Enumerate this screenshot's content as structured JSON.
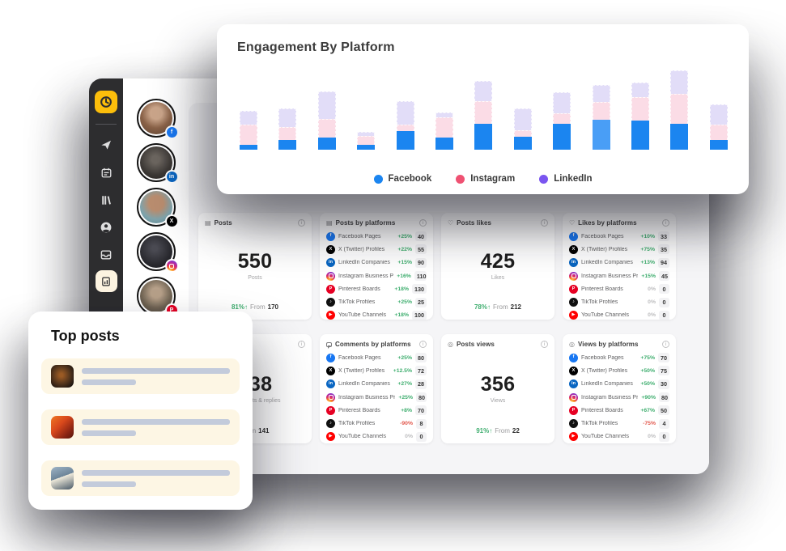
{
  "engagement_card": {
    "title": "Engagement By Platform",
    "legend": [
      {
        "label": "Facebook",
        "color": "#1b85f0"
      },
      {
        "label": "Instagram",
        "color": "#ef5172"
      },
      {
        "label": "LinkedIn",
        "color": "#7a55f0"
      }
    ]
  },
  "chart_data": {
    "type": "bar",
    "stacked": true,
    "title": "Engagement By Platform",
    "x": [
      1,
      2,
      3,
      4,
      5,
      6,
      7,
      8,
      9,
      10,
      11,
      12,
      13
    ],
    "series": [
      {
        "name": "Facebook",
        "color": "#1b85f0",
        "values": [
          6,
          12,
          15,
          6,
          23,
          15,
          32,
          16,
          32,
          37,
          36,
          32,
          12
        ]
      },
      {
        "name": "Instagram",
        "color": "#fbdce6",
        "values": [
          25,
          16,
          23,
          11,
          8,
          25,
          28,
          8,
          13,
          22,
          29,
          37,
          19
        ]
      },
      {
        "name": "LinkedIn",
        "color": "#e2ddf8",
        "values": [
          17,
          23,
          34,
          5,
          29,
          6,
          25,
          27,
          26,
          21,
          18,
          29,
          25
        ]
      }
    ],
    "highlight_index": 9,
    "highlight_color": "#499ef6",
    "xlabel": "",
    "ylabel": "",
    "axes": "hidden",
    "legend_position": "bottom",
    "unit": "relative engagement units (estimated from pixels)"
  },
  "accounts": [
    {
      "network": "Facebook",
      "badge_color": "#1877f2",
      "badge_glyph": "f"
    },
    {
      "network": "LinkedIn",
      "badge_color": "#0a66c2",
      "badge_glyph": "in"
    },
    {
      "network": "X (Twitter)",
      "badge_color": "#000000",
      "badge_glyph": "X"
    },
    {
      "network": "Instagram",
      "badge_color": "ig",
      "badge_glyph": ""
    },
    {
      "network": "Pinterest",
      "badge_color": "#e60023",
      "badge_glyph": "P"
    }
  ],
  "stats": {
    "posts": {
      "icon": "▤",
      "title": "Posts",
      "value": "550",
      "unit": "Posts",
      "percent": "81%",
      "arrow": "↑",
      "from_label": "From",
      "from_value": "170"
    },
    "likes": {
      "icon": "♡",
      "title": "Posts likes",
      "value": "425",
      "unit": "Likes",
      "percent": "78%",
      "arrow": "↑",
      "from_label": "From",
      "from_value": "212"
    },
    "comments": {
      "icon": "",
      "title": "",
      "value": "138",
      "unit": "Comments & replies",
      "percent": "",
      "arrow": "",
      "from_label": "From",
      "from_value": "141"
    },
    "views": {
      "icon": "◎",
      "title": "Posts views",
      "value": "356",
      "unit": "Views",
      "percent": "91%",
      "arrow": "↑",
      "from_label": "From",
      "from_value": "22"
    }
  },
  "platform_lists": {
    "posts": {
      "icon": "▤",
      "title": "Posts by platforms",
      "rows": [
        {
          "name": "Facebook Pages",
          "color": "#1877f2",
          "glyph": "f",
          "percent": "+25%",
          "trend": "up",
          "value": "40"
        },
        {
          "name": "X (Twitter) Profiles",
          "color": "#000000",
          "glyph": "X",
          "percent": "+22%",
          "trend": "up",
          "value": "55"
        },
        {
          "name": "LinkedIn Companies",
          "color": "#0a66c2",
          "glyph": "in",
          "percent": "+15%",
          "trend": "up",
          "value": "90"
        },
        {
          "name": "Instagram Business Profiles",
          "color": "ig",
          "glyph": "",
          "percent": "+16%",
          "trend": "up",
          "value": "110"
        },
        {
          "name": "Pinterest Boards",
          "color": "#e60023",
          "glyph": "P",
          "percent": "+18%",
          "trend": "up",
          "value": "130"
        },
        {
          "name": "TikTok Profiles",
          "color": "#111111",
          "glyph": "♪",
          "percent": "+25%",
          "trend": "up",
          "value": "25"
        },
        {
          "name": "YouTube Channels",
          "color": "#ff0000",
          "glyph": "▶",
          "percent": "+18%",
          "trend": "up",
          "value": "100"
        }
      ]
    },
    "likes": {
      "icon": "♡",
      "title": "Likes by platforms",
      "rows": [
        {
          "name": "Facebook Pages",
          "color": "#1877f2",
          "glyph": "f",
          "percent": "+10%",
          "trend": "up",
          "value": "33"
        },
        {
          "name": "X (Twitter) Profiles",
          "color": "#000000",
          "glyph": "X",
          "percent": "+75%",
          "trend": "up",
          "value": "35"
        },
        {
          "name": "LinkedIn Companies",
          "color": "#0a66c2",
          "glyph": "in",
          "percent": "+13%",
          "trend": "up",
          "value": "94"
        },
        {
          "name": "Instagram Business Profiles",
          "color": "ig",
          "glyph": "",
          "percent": "+15%",
          "trend": "up",
          "value": "45"
        },
        {
          "name": "Pinterest Boards",
          "color": "#e60023",
          "glyph": "P",
          "percent": "0%",
          "trend": "flat",
          "value": "0"
        },
        {
          "name": "TikTok Profiles",
          "color": "#111111",
          "glyph": "♪",
          "percent": "0%",
          "trend": "flat",
          "value": "0"
        },
        {
          "name": "YouTube Channels",
          "color": "#ff0000",
          "glyph": "▶",
          "percent": "0%",
          "trend": "flat",
          "value": "0"
        }
      ]
    },
    "comments": {
      "icon": "",
      "title": "Comments by platforms",
      "rows": [
        {
          "name": "Facebook Pages",
          "color": "#1877f2",
          "glyph": "f",
          "percent": "+25%",
          "trend": "up",
          "value": "80"
        },
        {
          "name": "X (Twitter) Profiles",
          "color": "#000000",
          "glyph": "X",
          "percent": "+12.5%",
          "trend": "up",
          "value": "72"
        },
        {
          "name": "LinkedIn Companies",
          "color": "#0a66c2",
          "glyph": "in",
          "percent": "+27%",
          "trend": "up",
          "value": "28"
        },
        {
          "name": "Instagram Business Profiles",
          "color": "ig",
          "glyph": "",
          "percent": "+25%",
          "trend": "up",
          "value": "80"
        },
        {
          "name": "Pinterest Boards",
          "color": "#e60023",
          "glyph": "P",
          "percent": "+8%",
          "trend": "up",
          "value": "70"
        },
        {
          "name": "TikTok Profiles",
          "color": "#111111",
          "glyph": "♪",
          "percent": "-90%",
          "trend": "down",
          "value": "8"
        },
        {
          "name": "YouTube Channels",
          "color": "#ff0000",
          "glyph": "▶",
          "percent": "0%",
          "trend": "flat",
          "value": "0"
        }
      ]
    },
    "views": {
      "icon": "◎",
      "title": "Views by platforms",
      "rows": [
        {
          "name": "Facebook Pages",
          "color": "#1877f2",
          "glyph": "f",
          "percent": "+75%",
          "trend": "up",
          "value": "70"
        },
        {
          "name": "X (Twitter) Profiles",
          "color": "#000000",
          "glyph": "X",
          "percent": "+50%",
          "trend": "up",
          "value": "75"
        },
        {
          "name": "LinkedIn Companies",
          "color": "#0a66c2",
          "glyph": "in",
          "percent": "+50%",
          "trend": "up",
          "value": "30"
        },
        {
          "name": "Instagram Business Profiles",
          "color": "ig",
          "glyph": "",
          "percent": "+90%",
          "trend": "up",
          "value": "80"
        },
        {
          "name": "Pinterest Boards",
          "color": "#e60023",
          "glyph": "P",
          "percent": "+67%",
          "trend": "up",
          "value": "50"
        },
        {
          "name": "TikTok Profiles",
          "color": "#111111",
          "glyph": "♪",
          "percent": "-75%",
          "trend": "down",
          "value": "4"
        },
        {
          "name": "YouTube Channels",
          "color": "#ff0000",
          "glyph": "▶",
          "percent": "0%",
          "trend": "flat",
          "value": "0"
        }
      ]
    }
  },
  "top_posts": {
    "title": "Top posts",
    "rows": [
      {
        "image": "food-dish-photo"
      },
      {
        "image": "people-group-photo"
      },
      {
        "image": "street-scene-photo"
      }
    ]
  }
}
